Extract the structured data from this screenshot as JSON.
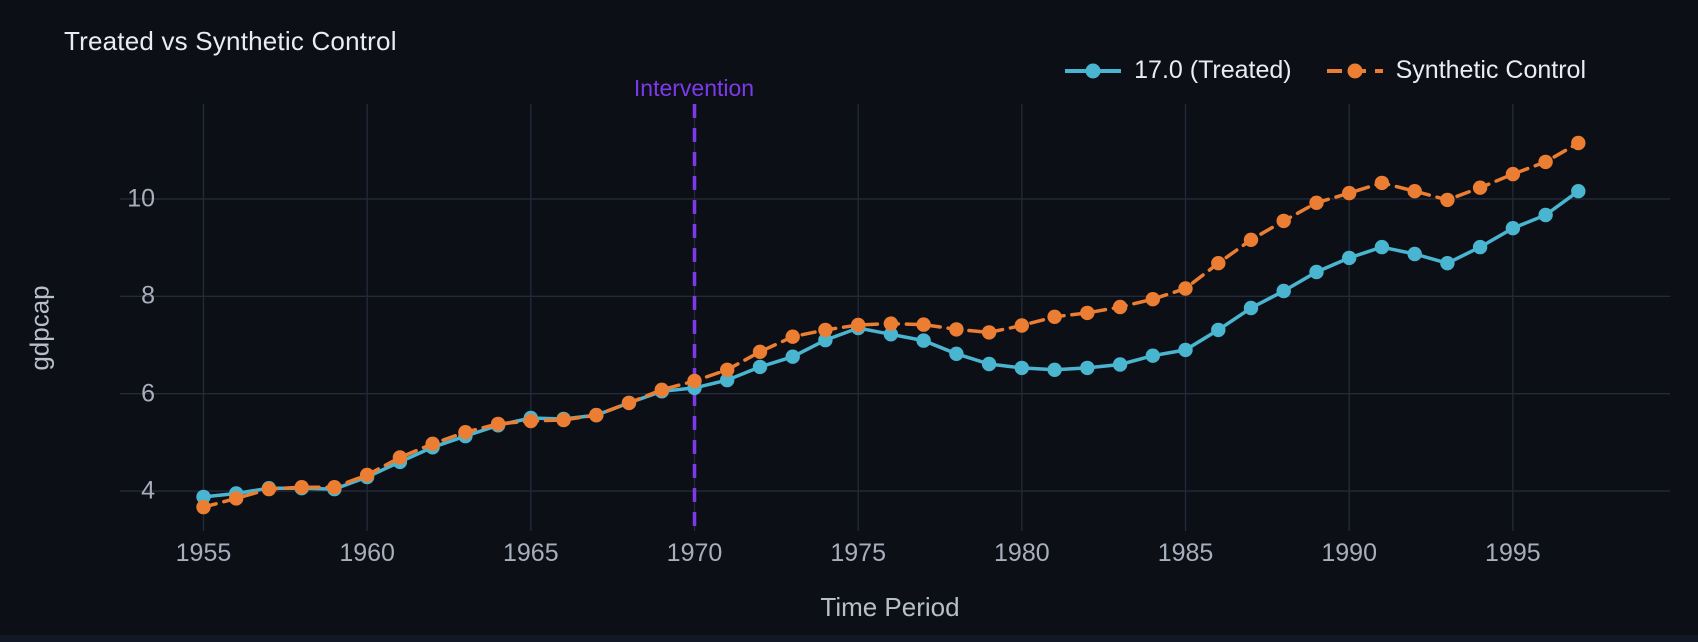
{
  "title": "Treated vs Synthetic Control",
  "legend": {
    "treated_label": "17.0 (Treated)",
    "synthetic_label": "Synthetic Control"
  },
  "annotation": {
    "intervention_label": "Intervention"
  },
  "colors": {
    "treated": "#4ab5d0",
    "synthetic": "#ec7e33",
    "intervention": "#7d3aea",
    "grid": "#232a3a",
    "background": "#0c0f15",
    "title_text": "#e9edf2",
    "tick_text": "#a8afbc",
    "axis_title_text": "#b7bfca"
  },
  "chart_data": {
    "type": "line",
    "title": "Treated vs Synthetic Control",
    "xlabel": "Time Period",
    "ylabel": "gdpcap",
    "grid": true,
    "legend_position": "top-right",
    "xlim": [
      1952.45,
      1999.8
    ],
    "ylim": [
      3.18,
      11.95
    ],
    "xticks": [
      1955,
      1960,
      1965,
      1970,
      1975,
      1980,
      1985,
      1990,
      1995
    ],
    "yticks": [
      4,
      6,
      8,
      10
    ],
    "vline": {
      "x": 1970,
      "label": "Intervention",
      "style": "dashed"
    },
    "x": [
      1955,
      1956,
      1957,
      1958,
      1959,
      1960,
      1961,
      1962,
      1963,
      1964,
      1965,
      1966,
      1967,
      1968,
      1969,
      1970,
      1971,
      1972,
      1973,
      1974,
      1975,
      1976,
      1977,
      1978,
      1979,
      1980,
      1981,
      1982,
      1983,
      1984,
      1985,
      1986,
      1987,
      1988,
      1989,
      1990,
      1991,
      1992,
      1993,
      1994,
      1995,
      1996,
      1997
    ],
    "series": [
      {
        "name": "17.0 (Treated)",
        "color_key": "treated",
        "line_style": "solid",
        "marker": "circle",
        "values": [
          3.88,
          3.95,
          4.06,
          4.06,
          4.04,
          4.29,
          4.6,
          4.9,
          5.13,
          5.35,
          5.5,
          5.48,
          5.56,
          5.81,
          6.05,
          6.12,
          6.28,
          6.55,
          6.76,
          7.1,
          7.35,
          7.22,
          7.09,
          6.82,
          6.61,
          6.53,
          6.49,
          6.53,
          6.6,
          6.78,
          6.9,
          7.31,
          7.76,
          8.11,
          8.5,
          8.79,
          9.01,
          8.87,
          8.68,
          9.01,
          9.4,
          9.67,
          10.16
        ]
      },
      {
        "name": "Synthetic Control",
        "color_key": "synthetic",
        "line_style": "dashed",
        "marker": "circle",
        "values": [
          3.67,
          3.85,
          4.04,
          4.08,
          4.08,
          4.33,
          4.69,
          4.97,
          5.21,
          5.38,
          5.44,
          5.46,
          5.56,
          5.81,
          6.08,
          6.26,
          6.49,
          6.86,
          7.17,
          7.31,
          7.41,
          7.44,
          7.42,
          7.32,
          7.26,
          7.4,
          7.58,
          7.66,
          7.78,
          7.94,
          8.16,
          8.68,
          9.16,
          9.55,
          9.92,
          10.12,
          10.33,
          10.16,
          9.98,
          10.23,
          10.51,
          10.76,
          11.15
        ]
      }
    ]
  }
}
